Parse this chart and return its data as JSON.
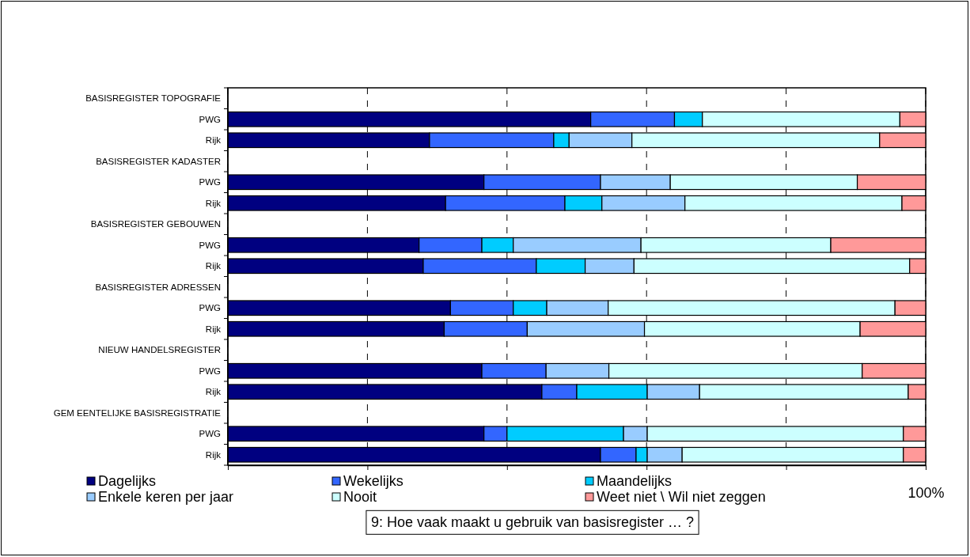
{
  "chart_data": {
    "type": "bar",
    "orientation": "horizontal",
    "stacked": true,
    "title": "9: Hoe vaak maakt u gebruik van basisregister … ?",
    "categories": [
      "BASISREGISTER TOPOGRAFIE",
      "PWG",
      "Rijk",
      "BASISREGISTER KADASTER",
      "PWG",
      "Rijk",
      "BASISREGISTER GEBOUWEN",
      "PWG",
      "Rijk",
      "BASISREGISTER ADRESSEN",
      "PWG",
      "Rijk",
      "NIEUW HANDELSREGISTER",
      "PWG",
      "Rijk",
      "GEM EENTELIJKE BASISREGISTRATIE",
      "PWG",
      "Rijk"
    ],
    "series": [
      {
        "name": "Dagelijks",
        "color": "#000080",
        "values": [
          null,
          52.0,
          28.9,
          null,
          36.7,
          31.2,
          null,
          27.4,
          28.0,
          null,
          31.9,
          31.0,
          null,
          36.4,
          45.0,
          null,
          36.7,
          53.4
        ]
      },
      {
        "name": "Wekelijks",
        "color": "#3366ff",
        "values": [
          null,
          12.0,
          17.8,
          null,
          16.7,
          17.1,
          null,
          9.0,
          16.2,
          null,
          9.0,
          11.9,
          null,
          9.2,
          5.0,
          null,
          3.3,
          5.1
        ]
      },
      {
        "name": "Maandelijks",
        "color": "#00ccff",
        "values": [
          null,
          4.0,
          2.2,
          null,
          0,
          5.3,
          null,
          4.5,
          7.0,
          null,
          4.8,
          0,
          null,
          0,
          10.1,
          null,
          16.7,
          1.6
        ]
      },
      {
        "name": "Enkele keren per jaar",
        "color": "#99ccff",
        "values": [
          null,
          0,
          9.0,
          null,
          10.0,
          11.9,
          null,
          18.3,
          7.0,
          null,
          8.8,
          16.8,
          null,
          9.0,
          7.5,
          null,
          3.4,
          5.0
        ]
      },
      {
        "name": "Nooit",
        "color": "#ccffff",
        "values": [
          null,
          28.3,
          35.5,
          null,
          26.8,
          31.1,
          null,
          27.2,
          39.5,
          null,
          41.1,
          30.9,
          null,
          36.3,
          29.9,
          null,
          36.7,
          31.7
        ]
      },
      {
        "name": "Weet niet \\ Wil niet zeggen",
        "color": "#ff9999",
        "values": [
          null,
          3.7,
          6.6,
          null,
          9.8,
          3.4,
          null,
          13.6,
          2.3,
          null,
          4.4,
          9.4,
          null,
          9.1,
          2.5,
          null,
          3.2,
          3.2
        ]
      }
    ],
    "xlim": [
      0,
      100
    ],
    "xticks": [
      {
        "value": 0,
        "label": null
      },
      {
        "value": 20,
        "label": null
      },
      {
        "value": 40,
        "label": null
      },
      {
        "value": 60,
        "label": null
      },
      {
        "value": 80,
        "label": null
      },
      {
        "value": 100,
        "label": "100%"
      }
    ],
    "grid": "x",
    "legend": "bottom"
  }
}
